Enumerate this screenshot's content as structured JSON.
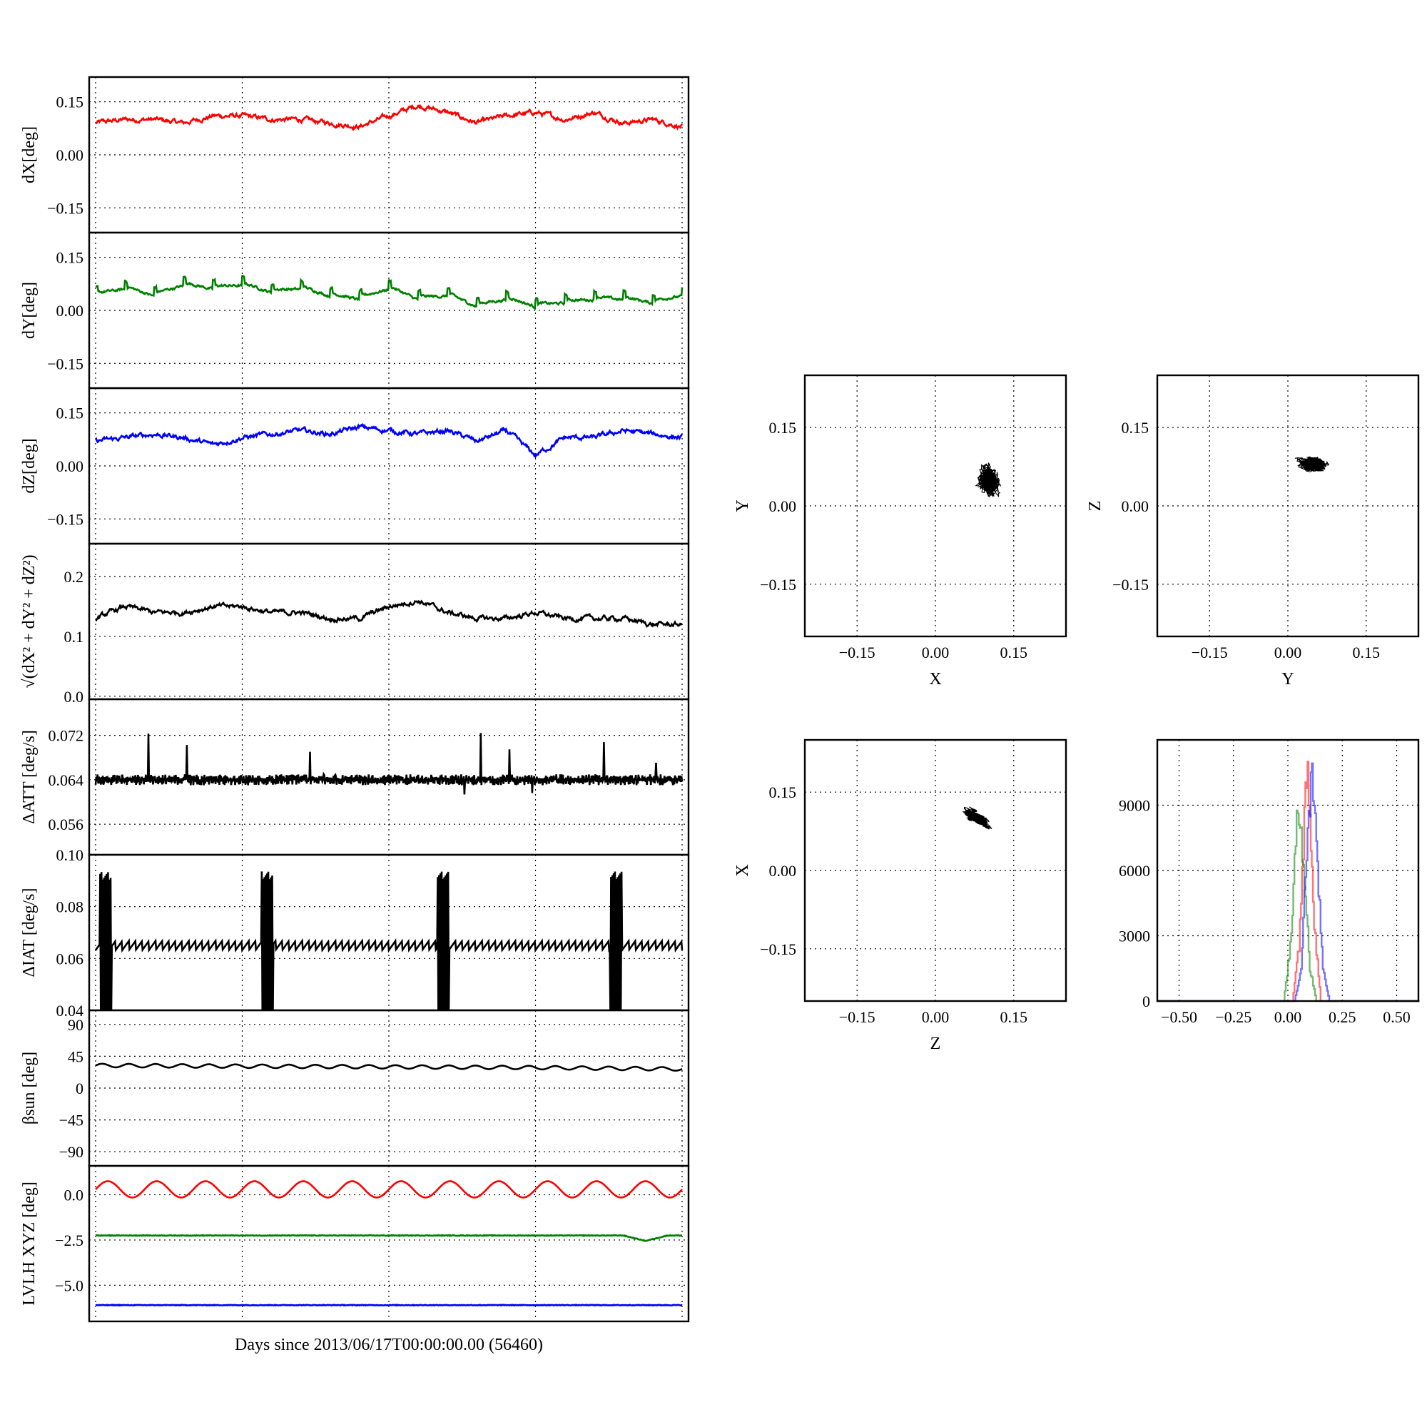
{
  "figure": {
    "xlabel": "Days since 2013/06/17T00:00:00.00 (56460)"
  },
  "colors": {
    "red": "#ff0000",
    "green": "#008000",
    "blue": "#0000ff",
    "black": "#000000"
  },
  "chart_data": [
    {
      "type": "line",
      "ylabel": "dX[deg]",
      "ylim": [
        -0.22,
        0.22
      ],
      "yticks": [
        "0.15",
        "0.00",
        "−0.15"
      ],
      "ytick_values": [
        0.15,
        0.0,
        -0.15
      ],
      "xlim": [
        0,
        4
      ],
      "series": [
        {
          "color": "#ff0000",
          "style": "noisy",
          "x": [
            0,
            0.2,
            0.4,
            0.6,
            0.8,
            1.0,
            1.2,
            1.4,
            1.6,
            1.8,
            2.0,
            2.2,
            2.4,
            2.6,
            2.8,
            3.0,
            3.2,
            3.4,
            3.6,
            3.8,
            4.0
          ],
          "y": [
            0.09,
            0.1,
            0.1,
            0.09,
            0.11,
            0.11,
            0.1,
            0.1,
            0.09,
            0.08,
            0.11,
            0.14,
            0.12,
            0.09,
            0.11,
            0.12,
            0.1,
            0.12,
            0.09,
            0.1,
            0.08
          ]
        }
      ]
    },
    {
      "type": "line",
      "ylabel": "dY[deg]",
      "ylim": [
        -0.22,
        0.22
      ],
      "yticks": [
        "0.15",
        "0.00",
        "−0.15"
      ],
      "ytick_values": [
        0.15,
        0.0,
        -0.15
      ],
      "xlim": [
        0,
        4
      ],
      "series": [
        {
          "color": "#008000",
          "style": "sawtooth",
          "x": [
            0,
            0.2,
            0.4,
            0.6,
            0.8,
            1.0,
            1.2,
            1.4,
            1.6,
            1.8,
            2.0,
            2.2,
            2.4,
            2.6,
            2.8,
            3.0,
            3.2,
            3.4,
            3.6,
            3.8,
            4.0
          ],
          "y": [
            0.05,
            0.07,
            0.05,
            0.08,
            0.07,
            0.08,
            0.06,
            0.07,
            0.05,
            0.04,
            0.07,
            0.04,
            0.05,
            0.02,
            0.04,
            0.02,
            0.03,
            0.04,
            0.04,
            0.03,
            0.05
          ]
        }
      ]
    },
    {
      "type": "line",
      "ylabel": "dZ[deg]",
      "ylim": [
        -0.22,
        0.22
      ],
      "yticks": [
        "0.15",
        "0.00",
        "−0.15"
      ],
      "ytick_values": [
        0.15,
        0.0,
        -0.15
      ],
      "xlim": [
        0,
        4
      ],
      "series": [
        {
          "color": "#0000ff",
          "style": "noisy",
          "x": [
            0,
            0.2,
            0.4,
            0.6,
            0.8,
            1.0,
            1.2,
            1.4,
            1.6,
            1.8,
            2.0,
            2.2,
            2.4,
            2.6,
            2.8,
            3.0,
            3.2,
            3.4,
            3.6,
            3.8,
            4.0
          ],
          "y": [
            0.07,
            0.08,
            0.09,
            0.08,
            0.06,
            0.08,
            0.09,
            0.1,
            0.09,
            0.11,
            0.1,
            0.09,
            0.1,
            0.07,
            0.1,
            0.03,
            0.08,
            0.08,
            0.1,
            0.09,
            0.08
          ]
        }
      ]
    },
    {
      "type": "line",
      "ylabel": "√(dX² + dY² + dZ²)",
      "ylim": [
        -0.005,
        0.255
      ],
      "yticks": [
        "0.2",
        "0.1",
        "0.0"
      ],
      "ytick_values": [
        0.2,
        0.1,
        0.0
      ],
      "xlim": [
        0,
        4
      ],
      "series": [
        {
          "color": "#000000",
          "style": "noisy",
          "x": [
            0,
            0.2,
            0.4,
            0.6,
            0.8,
            1.0,
            1.2,
            1.4,
            1.6,
            1.8,
            2.0,
            2.2,
            2.4,
            2.6,
            2.8,
            3.0,
            3.2,
            3.4,
            3.6,
            3.8,
            4.0
          ],
          "y": [
            0.13,
            0.15,
            0.14,
            0.14,
            0.15,
            0.15,
            0.14,
            0.14,
            0.13,
            0.13,
            0.15,
            0.16,
            0.14,
            0.13,
            0.13,
            0.14,
            0.13,
            0.13,
            0.13,
            0.12,
            0.12
          ]
        }
      ]
    },
    {
      "type": "line",
      "ylabel": "ΔATT [deg/s]",
      "ylim": [
        0.0505,
        0.0785
      ],
      "yticks": [
        "0.072",
        "0.064",
        "0.056"
      ],
      "ytick_values": [
        0.072,
        0.064,
        0.056
      ],
      "xlim": [
        0,
        4
      ],
      "series": [
        {
          "color": "#000000",
          "style": "spiky",
          "x": [
            0,
            0.5,
            1.0,
            1.5,
            2.0,
            2.5,
            3.0,
            3.5,
            4.0
          ],
          "y": [
            0.064,
            0.064,
            0.064,
            0.064,
            0.064,
            0.064,
            0.064,
            0.064,
            0.064
          ]
        }
      ]
    },
    {
      "type": "line",
      "ylabel": "ΔIAT [deg/s]",
      "ylim": [
        0.04,
        0.1
      ],
      "yticks": [
        "0.10",
        "0.08",
        "0.06",
        "0.04"
      ],
      "ytick_values": [
        0.1,
        0.08,
        0.06,
        0.04
      ],
      "xlim": [
        0,
        4
      ],
      "series": [
        {
          "color": "#000000",
          "style": "bursts",
          "x": [
            0,
            0.5,
            1.0,
            1.5,
            2.0,
            2.5,
            3.0,
            3.5,
            4.0
          ],
          "y": [
            0.065,
            0.065,
            0.065,
            0.065,
            0.065,
            0.065,
            0.065,
            0.065,
            0.065
          ]
        }
      ]
    },
    {
      "type": "line",
      "ylabel": "βsun [deg]",
      "ylim": [
        -110,
        110
      ],
      "yticks": [
        "90",
        "45",
        "0",
        "−45",
        "−90"
      ],
      "ytick_values": [
        90,
        45,
        0,
        -45,
        -90
      ],
      "xlim": [
        0,
        4
      ],
      "series": [
        {
          "color": "#000000",
          "style": "wavy",
          "x": [
            0,
            1,
            2,
            3,
            4
          ],
          "y": [
            32,
            31,
            30,
            29,
            27
          ]
        }
      ]
    },
    {
      "type": "line",
      "ylabel": "LVLH XYZ [deg]",
      "ylim": [
        -7.0,
        1.6
      ],
      "yticks": [
        "0.0",
        "−2.5",
        "−5.0"
      ],
      "ytick_values": [
        0.0,
        -2.5,
        -5.0
      ],
      "xlim": [
        0,
        4
      ],
      "series": [
        {
          "color": "#ff0000",
          "style": "sine",
          "x": [
            0,
            4
          ],
          "y": [
            0.3,
            0.3
          ]
        },
        {
          "color": "#008000",
          "style": "flat",
          "x": [
            0,
            3.6,
            3.75,
            3.9,
            4.0
          ],
          "y": [
            -2.25,
            -2.25,
            -2.55,
            -2.25,
            -2.25
          ]
        },
        {
          "color": "#0000ff",
          "style": "flat",
          "x": [
            0,
            4
          ],
          "y": [
            -6.1,
            -6.1
          ]
        }
      ]
    },
    {
      "type": "scatter",
      "xlabel": "X",
      "ylabel": "Y",
      "xlim": [
        -0.25,
        0.25
      ],
      "ylim": [
        -0.25,
        0.25
      ],
      "xticks": [
        "−0.15",
        "0.00",
        "0.15"
      ],
      "yticks": [
        "0.15",
        "0.00",
        "−0.15"
      ],
      "tick_values": [
        -0.15,
        0.0,
        0.15
      ],
      "cluster": {
        "center": [
          0.1,
          0.05
        ],
        "spread": [
          0.022,
          0.03
        ],
        "angle": 0
      }
    },
    {
      "type": "scatter",
      "xlabel": "Y",
      "ylabel": "Z",
      "xlim": [
        -0.25,
        0.25
      ],
      "ylim": [
        -0.25,
        0.25
      ],
      "xticks": [
        "−0.15",
        "0.00",
        "0.15"
      ],
      "yticks": [
        "0.15",
        "0.00",
        "−0.15"
      ],
      "tick_values": [
        -0.15,
        0.0,
        0.15
      ],
      "cluster": {
        "center": [
          0.05,
          0.08
        ],
        "spread": [
          0.03,
          0.016
        ],
        "angle": 0
      }
    },
    {
      "type": "scatter",
      "xlabel": "Z",
      "ylabel": "X",
      "xlim": [
        -0.25,
        0.25
      ],
      "ylim": [
        -0.25,
        0.25
      ],
      "xticks": [
        "−0.15",
        "0.00",
        "0.15"
      ],
      "yticks": [
        "0.15",
        "0.00",
        "−0.15"
      ],
      "tick_values": [
        -0.15,
        0.0,
        0.15
      ],
      "cluster": {
        "center": [
          0.08,
          0.1
        ],
        "spread": [
          0.03,
          0.008
        ],
        "angle": -35
      }
    },
    {
      "type": "line",
      "subtype": "histogram",
      "xlim": [
        -0.6,
        0.6
      ],
      "ylim": [
        0,
        12000
      ],
      "xticks": [
        "−0.50",
        "−0.25",
        "0.00",
        "0.25",
        "0.50"
      ],
      "xtick_values": [
        -0.5,
        -0.25,
        0.0,
        0.25,
        0.5
      ],
      "yticks": [
        "9000",
        "6000",
        "3000",
        "0"
      ],
      "ytick_values": [
        9000,
        6000,
        3000,
        0
      ],
      "series": [
        {
          "color": "#ff0000",
          "x": [
            -0.6,
            0.02,
            0.05,
            0.08,
            0.09,
            0.1,
            0.12,
            0.15,
            0.6
          ],
          "y": [
            0,
            0,
            2500,
            9500,
            10500,
            8500,
            3500,
            0,
            0
          ]
        },
        {
          "color": "#008000",
          "x": [
            -0.6,
            -0.02,
            0.01,
            0.04,
            0.05,
            0.07,
            0.1,
            0.13,
            0.6
          ],
          "y": [
            0,
            0,
            2500,
            8000,
            8500,
            6500,
            1500,
            0,
            0
          ]
        },
        {
          "color": "#0000ff",
          "x": [
            -0.6,
            0.03,
            0.06,
            0.09,
            0.11,
            0.13,
            0.16,
            0.19,
            0.6
          ],
          "y": [
            0,
            0,
            1500,
            8000,
            10500,
            7000,
            1500,
            0,
            0
          ]
        }
      ]
    }
  ]
}
